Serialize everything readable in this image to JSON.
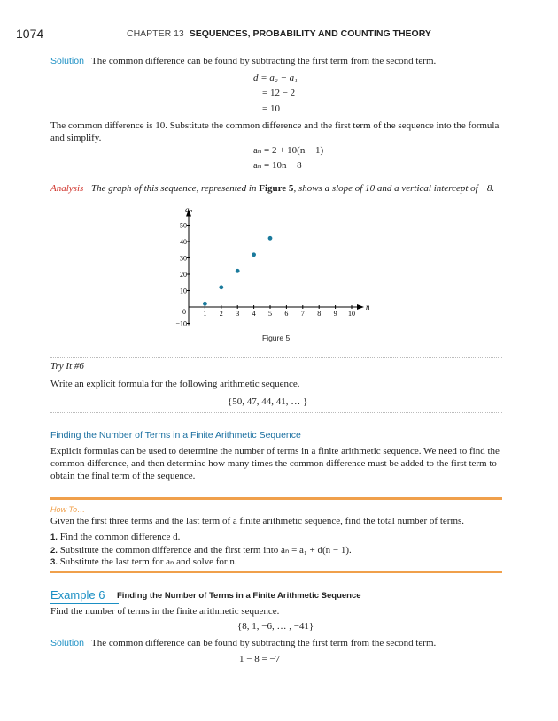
{
  "header": {
    "page_number": "1074",
    "chapter_label": "CHAPTER 13",
    "chapter_title": "SEQUENCES, PROBABILITY AND COUNTING THEORY"
  },
  "solution1": {
    "label": "Solution",
    "text": "The common difference can be found by subtracting the first term from the second term.",
    "eq": [
      "d = a₂ − a₁",
      "= 12 − 2",
      "= 10"
    ]
  },
  "para1": "The common difference is 10. Substitute the common difference and the first term of the sequence into the formula and simplify.",
  "formulas": [
    "aₙ = 2 + 10(n − 1)",
    "aₙ = 10n − 8"
  ],
  "analysis": {
    "label": "Analysis",
    "text_before": "The graph of this sequence, represented in ",
    "figure_ref": "Figure 5",
    "text_after": ", shows a slope of 10 and a vertical intercept of −8."
  },
  "chart_data": {
    "type": "scatter",
    "xlabel": "n",
    "ylabel": "aₙ",
    "x": [
      1,
      2,
      3,
      4,
      5
    ],
    "y": [
      2,
      12,
      22,
      32,
      42
    ],
    "xlim": [
      0,
      10
    ],
    "ylim": [
      -10,
      50
    ],
    "xticks": [
      "1",
      "2",
      "3",
      "4",
      "5",
      "6",
      "7",
      "8",
      "9",
      "10"
    ],
    "yticks": [
      "−10",
      "0",
      "10",
      "20",
      "30",
      "40",
      "50"
    ],
    "grid": false,
    "point_color": "#1a7a9c",
    "caption": "Figure 5"
  },
  "try_it": {
    "label": "Try It #6",
    "prompt": "Write an explicit formula for the following arithmetic sequence.",
    "set": "{50, 47, 44, 41, … }"
  },
  "section": {
    "heading": "Finding the Number of Terms in a Finite Arithmetic Sequence",
    "text": "Explicit formulas can be used to determine the number of terms in a finite arithmetic sequence. We need to find the common difference, and then determine how many times the common difference must be added to the first term to obtain the final term of the sequence."
  },
  "how_to": {
    "label": "How To…",
    "intro": "Given the first three terms and the last term of a finite arithmetic sequence, find the total number of terms.",
    "steps": [
      {
        "num": "1.",
        "text": "Find the common difference d."
      },
      {
        "num": "2.",
        "text": "Substitute the common difference and the first term into aₙ = a₁ + d(n − 1)."
      },
      {
        "num": "3.",
        "text": "Substitute the last term for aₙ and solve for n."
      }
    ]
  },
  "example": {
    "label": "Example 6",
    "title": "Finding the Number of Terms in a Finite Arithmetic Sequence",
    "prompt": "Find the number of terms in the finite arithmetic sequence.",
    "set": "{8, 1, −6, … , −41}"
  },
  "solution2": {
    "label": "Solution",
    "text": "The common difference can be found by subtracting the first term from the second term.",
    "eq": "1 − 8 = −7"
  },
  "colors": {
    "accent_blue": "#1b8fc4",
    "orange_rule": "#f0a04b",
    "analysis_red": "#d0342c"
  }
}
